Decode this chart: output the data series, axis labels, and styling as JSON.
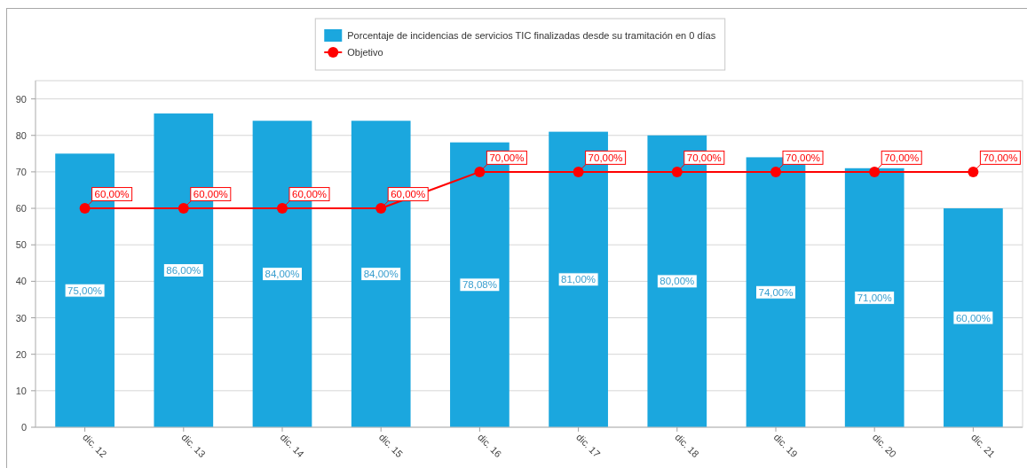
{
  "chart_data": {
    "type": "bar",
    "categories": [
      "dic. 12",
      "dic. 13",
      "dic. 14",
      "dic. 15",
      "dic. 16",
      "dic. 17",
      "dic. 18",
      "dic. 19",
      "dic. 20",
      "dic. 21"
    ],
    "series": [
      {
        "name": "Porcentaje de incidencias de servicios TIC finalizadas desde su tramitación en 0 días",
        "color": "#1ba7de",
        "values": [
          75,
          86,
          84,
          84,
          78.08,
          81,
          80,
          74,
          71,
          60
        ],
        "value_labels": [
          "75,00%",
          "86,00%",
          "84,00%",
          "84,00%",
          "78,08%",
          "81,00%",
          "80,00%",
          "74,00%",
          "71,00%",
          "60,00%"
        ]
      },
      {
        "name": "Objetivo",
        "type": "line",
        "color": "#ff0000",
        "values": [
          60,
          60,
          60,
          60,
          70,
          70,
          70,
          70,
          70,
          70
        ],
        "value_labels": [
          "60,00%",
          "60,00%",
          "60,00%",
          "60,00%",
          "70,00%",
          "70,00%",
          "70,00%",
          "70,00%",
          "70,00%",
          "70,00%"
        ]
      }
    ],
    "ylim": [
      0,
      95
    ],
    "yticks": [
      0,
      10,
      20,
      30,
      40,
      50,
      60,
      70,
      80,
      90
    ],
    "grid": "y",
    "legend": "top",
    "marker": "circle",
    "line_style": "solid"
  }
}
